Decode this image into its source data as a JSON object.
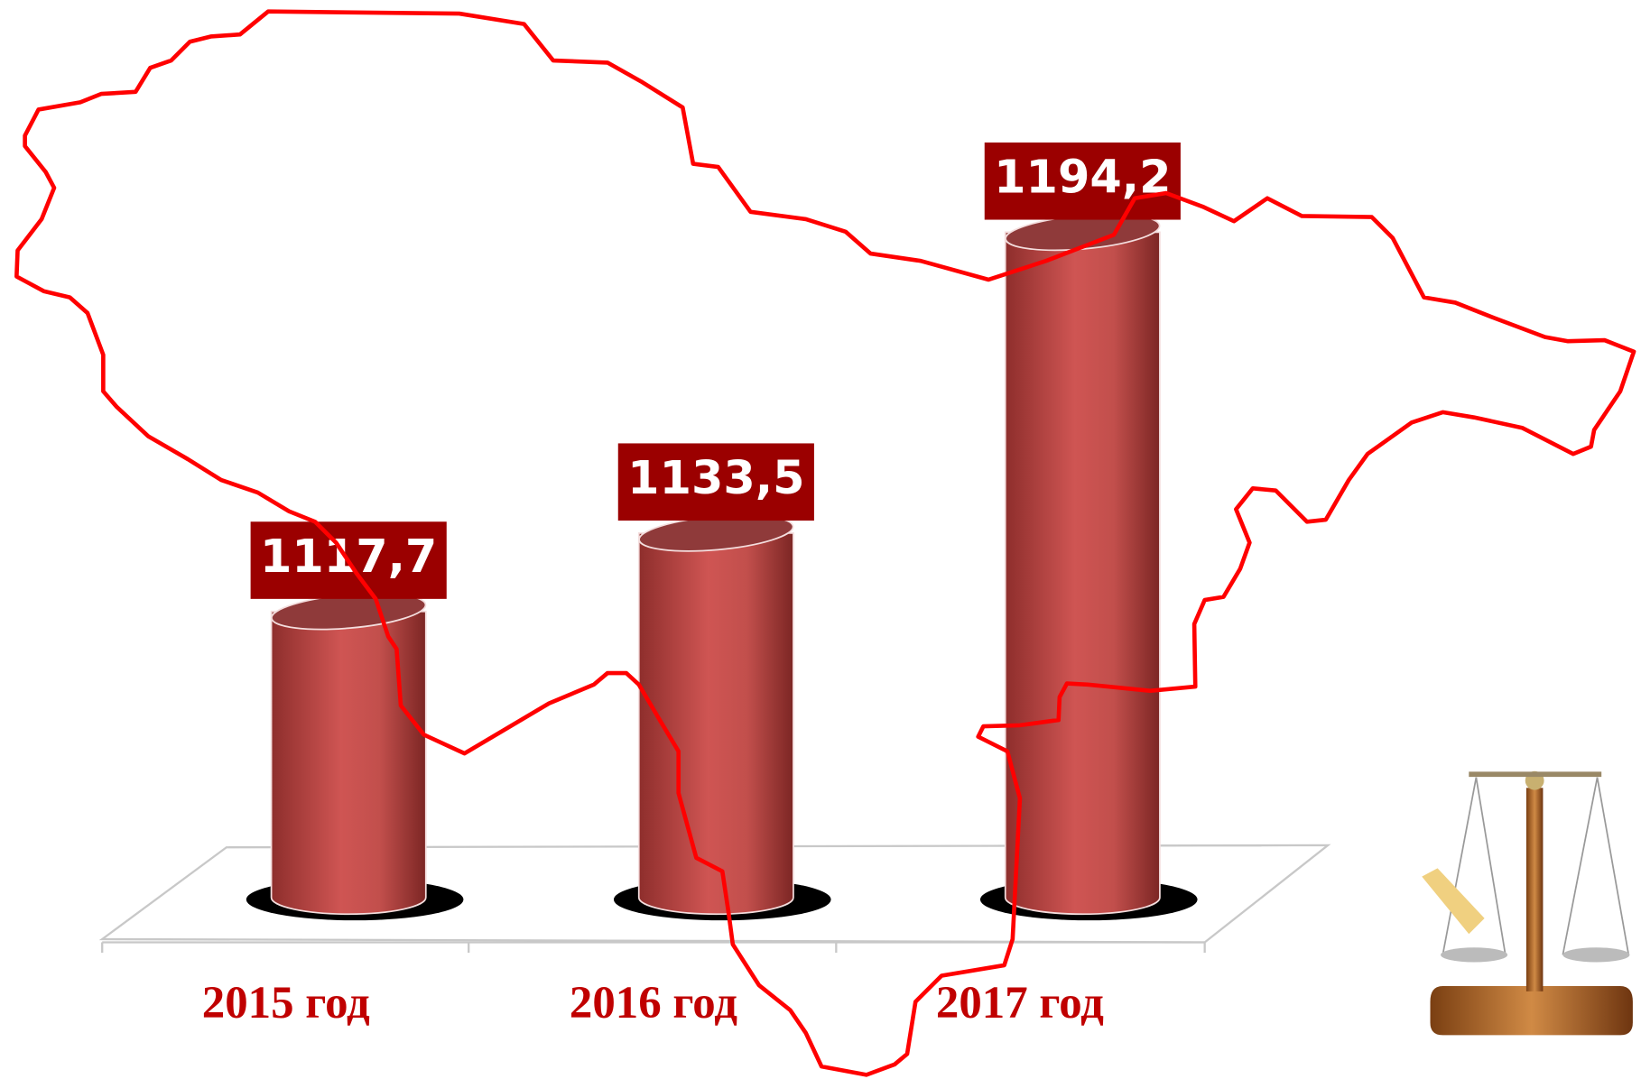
{
  "chart_data": {
    "type": "bar",
    "categories": [
      "2015 год",
      "2016 год",
      "2017 год"
    ],
    "values": [
      1117.7,
      1133.5,
      1194.2
    ],
    "value_labels": [
      "1117,7",
      "1133,5",
      "1194,2"
    ],
    "color": "#c0504d",
    "ylim": [
      1060,
      1200
    ]
  }
}
